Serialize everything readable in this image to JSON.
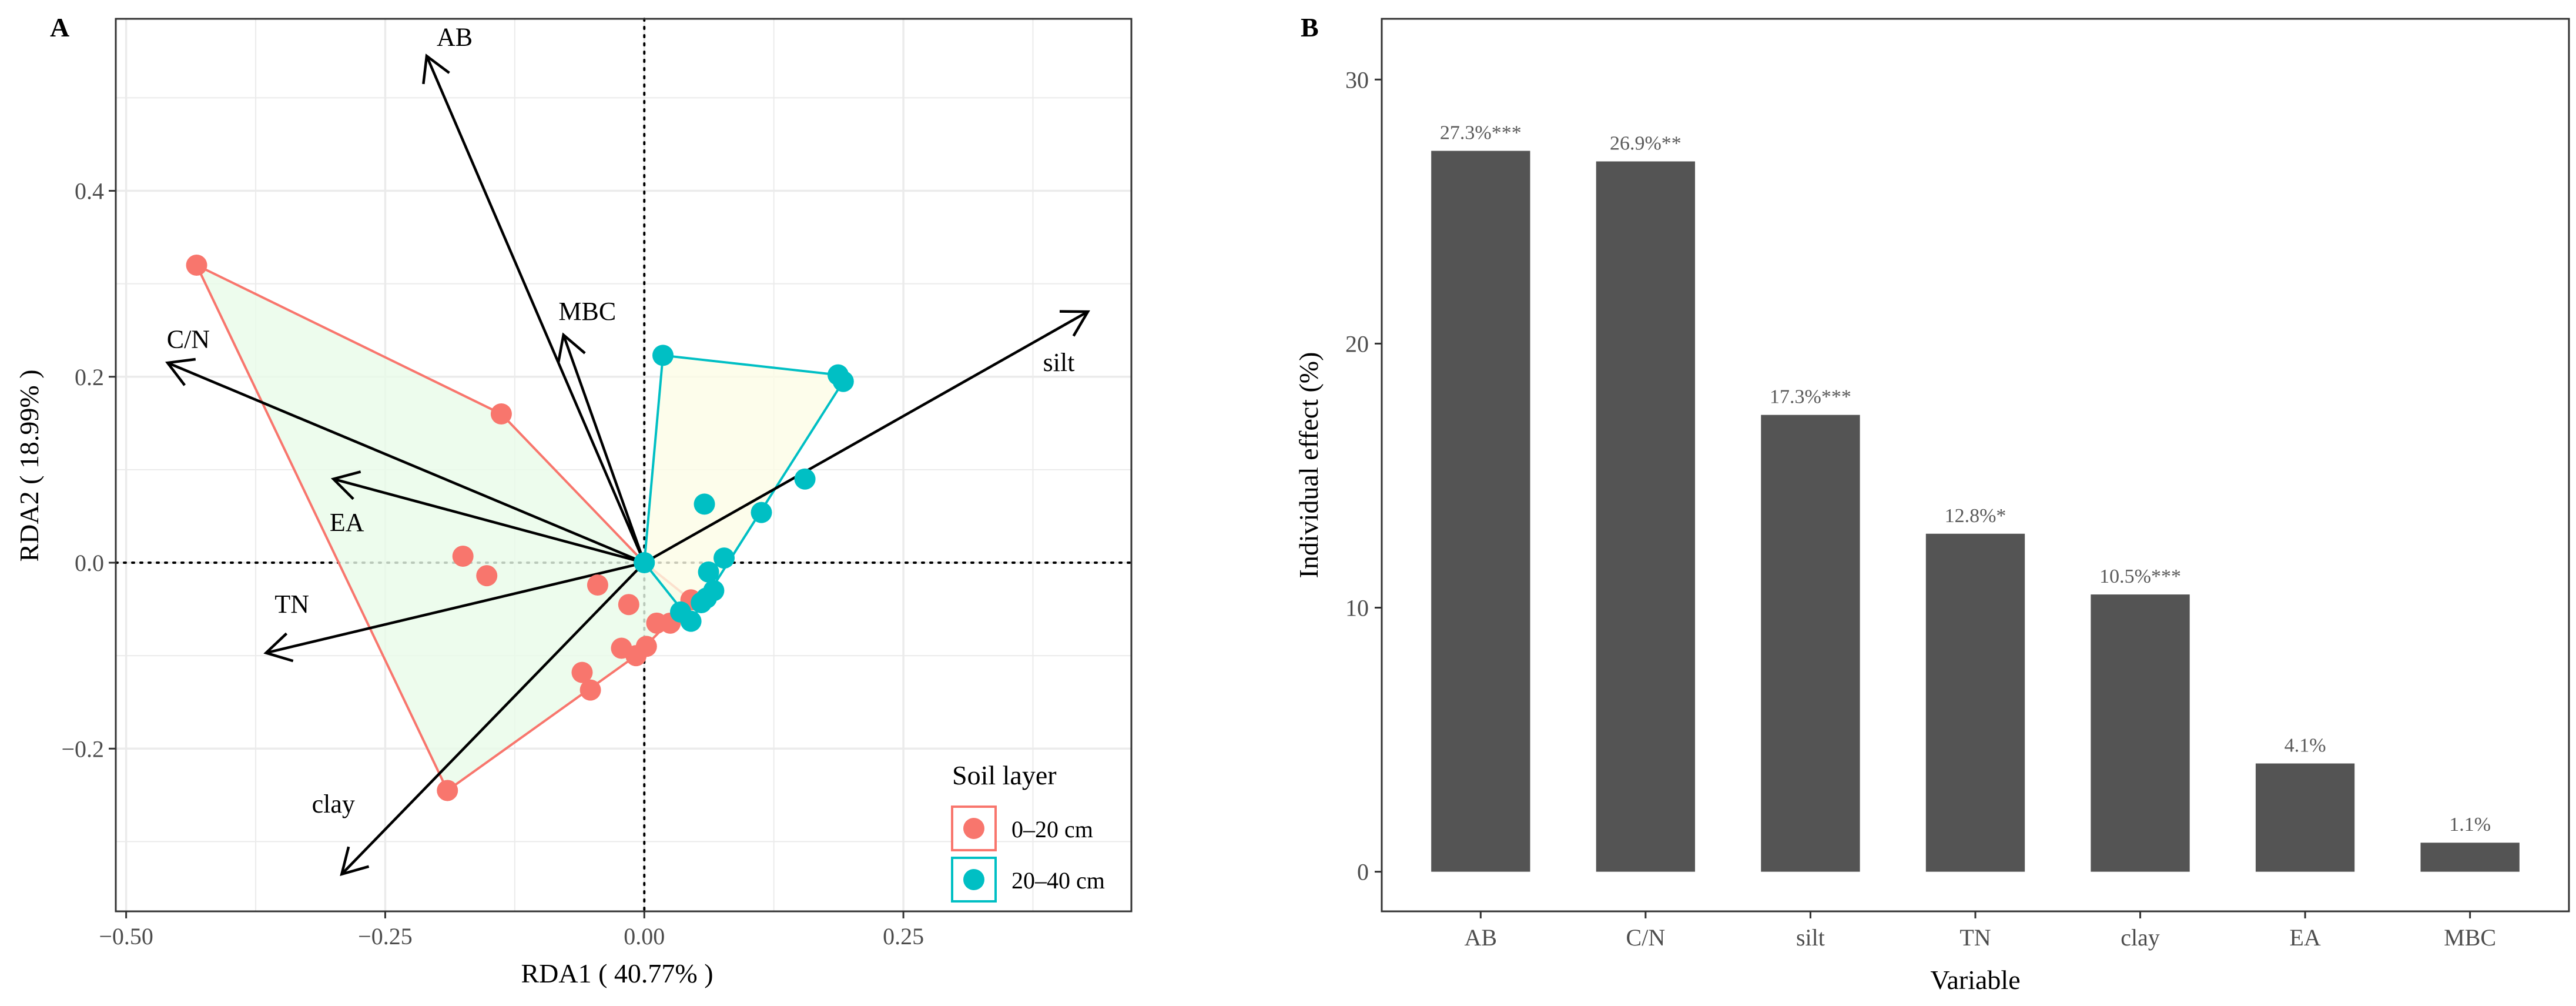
{
  "colors": {
    "layer1": "#F8766D",
    "layer2": "#00BFC4",
    "hull1_fill": "#e8fbe8",
    "hull2_fill": "#fdfde6",
    "bar": "#545454",
    "arrow": "#000000",
    "grid": "#ebebeb",
    "tick_text": "#4d4d4d",
    "value_label": "#5a5a5a"
  },
  "chart_data": [
    {
      "type": "scatter",
      "panel_label": "A",
      "xlabel": "RDA1 ( 40.77% )",
      "ylabel": "RDA2 ( 18.99%   )",
      "xlim": [
        -0.51,
        0.47
      ],
      "ylim": [
        -0.375,
        0.585
      ],
      "xticks": [
        -0.5,
        -0.25,
        0.0,
        0.25
      ],
      "xtick_labels": [
        "−0.50",
        "−0.25",
        "0.00",
        "0.25"
      ],
      "yticks": [
        -0.2,
        0.0,
        0.2,
        0.4
      ],
      "ytick_labels": [
        "−0.2",
        "0.0",
        "0.2",
        "0.4"
      ],
      "grid": true,
      "reference_lines": {
        "x": 0,
        "y": 0,
        "style": "dotted"
      },
      "legend": {
        "title": "Soil layer",
        "position": "bottom-right",
        "entries": [
          "0–20 cm",
          "20–40 cm"
        ]
      },
      "series": [
        {
          "name": "0–20 cm",
          "color_key": "layer1",
          "points": [
            [
              -0.432,
              0.32
            ],
            [
              -0.138,
              0.16
            ],
            [
              -0.175,
              0.007
            ],
            [
              -0.152,
              -0.014
            ],
            [
              -0.045,
              -0.024
            ],
            [
              -0.015,
              -0.045
            ],
            [
              -0.06,
              -0.118
            ],
            [
              -0.052,
              -0.137
            ],
            [
              -0.022,
              -0.092
            ],
            [
              -0.008,
              -0.1
            ],
            [
              0.002,
              -0.09
            ],
            [
              0.012,
              -0.065
            ],
            [
              0.025,
              -0.065
            ],
            [
              0.045,
              -0.04
            ],
            [
              -0.19,
              -0.245
            ]
          ]
        },
        {
          "name": "20–40 cm",
          "color_key": "layer2",
          "points": [
            [
              0.018,
              0.223
            ],
            [
              0.187,
              0.202
            ],
            [
              0.192,
              0.195
            ],
            [
              0.155,
              0.09
            ],
            [
              0.113,
              0.054
            ],
            [
              0.058,
              0.063
            ],
            [
              0.077,
              0.005
            ],
            [
              0.062,
              -0.01
            ],
            [
              0.067,
              -0.03
            ],
            [
              0.06,
              -0.038
            ],
            [
              0.055,
              -0.043
            ],
            [
              0.045,
              -0.063
            ],
            [
              0.035,
              -0.053
            ],
            [
              0.0,
              0.0
            ]
          ]
        }
      ],
      "hulls": [
        {
          "series": "0–20 cm",
          "points": [
            [
              -0.432,
              0.32
            ],
            [
              -0.138,
              0.16
            ],
            [
              0.0,
              0.0
            ],
            [
              0.045,
              -0.04
            ],
            [
              -0.008,
              -0.1
            ],
            [
              -0.19,
              -0.245
            ]
          ]
        },
        {
          "series": "20–40 cm",
          "points": [
            [
              0.018,
              0.223
            ],
            [
              0.187,
              0.202
            ],
            [
              0.192,
              0.195
            ],
            [
              0.045,
              -0.063
            ],
            [
              0.0,
              0.0
            ]
          ]
        }
      ],
      "vectors": [
        {
          "label": "AB",
          "x": -0.21,
          "y": 0.545,
          "label_x": -0.183,
          "label_y": 0.565
        },
        {
          "label": "MBC",
          "x": -0.078,
          "y": 0.245,
          "label_x": -0.055,
          "label_y": 0.27
        },
        {
          "label": "C/N",
          "x": -0.46,
          "y": 0.215,
          "label_x": -0.44,
          "label_y": 0.24
        },
        {
          "label": "silt",
          "x": 0.428,
          "y": 0.27,
          "label_x": 0.4,
          "label_y": 0.215
        },
        {
          "label": "EA",
          "x": -0.3,
          "y": 0.09,
          "label_x": -0.287,
          "label_y": 0.043
        },
        {
          "label": "TN",
          "x": -0.365,
          "y": -0.097,
          "label_x": -0.34,
          "label_y": -0.045
        },
        {
          "label": "clay",
          "x": -0.292,
          "y": -0.335,
          "label_x": -0.3,
          "label_y": -0.26
        }
      ]
    },
    {
      "type": "bar",
      "panel_label": "B",
      "xlabel": "Variable",
      "ylabel": "Individual effect (%)",
      "ylim": [
        -1.5,
        32.3
      ],
      "yticks": [
        0,
        10,
        20,
        30
      ],
      "grid": false,
      "categories": [
        "AB",
        "C/N",
        "silt",
        "TN",
        "clay",
        "EA",
        "MBC"
      ],
      "values": [
        27.3,
        26.9,
        17.3,
        12.8,
        10.5,
        4.1,
        1.1
      ],
      "value_labels": [
        "27.3%***",
        "26.9%**",
        "17.3%***",
        "12.8%*",
        "10.5%***",
        "4.1%",
        "1.1%"
      ]
    }
  ]
}
